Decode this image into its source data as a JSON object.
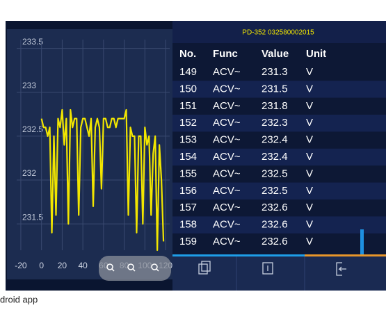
{
  "chart_data": {
    "type": "line",
    "x": [
      0,
      2,
      4,
      6,
      8,
      10,
      12,
      14,
      16,
      18,
      20,
      22,
      24,
      26,
      28,
      30,
      32,
      34,
      36,
      38,
      40,
      42,
      44,
      46,
      48,
      50,
      52,
      54,
      56,
      58,
      60,
      62,
      64,
      66,
      68,
      70,
      72,
      74,
      76,
      78,
      80,
      82,
      84,
      86,
      88,
      90,
      92,
      94,
      96,
      98,
      100,
      102,
      104,
      106,
      108,
      110,
      112,
      114,
      116,
      118
    ],
    "series": [
      {
        "color": "#f2e600",
        "values": [
          232.7,
          232.6,
          232.6,
          232.5,
          232.6,
          231.4,
          232.5,
          231.6,
          232.7,
          232.6,
          232.8,
          232.4,
          232.7,
          231.5,
          232.8,
          232.6,
          232.7,
          232.7,
          231.6,
          232.6,
          232.7,
          232.7,
          232.6,
          232.5,
          232.7,
          231.7,
          232.6,
          232.7,
          232.6,
          231.9,
          232.7,
          232.7,
          232.6,
          232.6,
          232.7,
          232.7,
          232.6,
          232.7,
          232.7,
          232.7,
          232.7,
          232.8,
          231.6,
          232.6,
          232.5,
          232.5,
          231.4,
          232.5,
          232.5,
          231.5,
          232.6,
          232.4,
          232.5,
          231.6,
          232.3,
          232.5,
          231.2,
          232.4,
          232.0,
          231.3
        ]
      }
    ],
    "xlim": [
      -24,
      124
    ],
    "ylim": [
      231.2,
      233.6
    ],
    "xticks": [
      -20,
      0,
      20,
      40,
      60,
      80,
      100,
      120
    ],
    "yticks": [
      231.5,
      232,
      232.5,
      233,
      233.5
    ],
    "grid": true
  },
  "device_id": "PD-352 032580002015",
  "table": {
    "header": [
      "No.",
      "Func",
      "Value",
      "Unit"
    ],
    "rows": [
      [
        "149",
        "ACV~",
        "231.3",
        "V"
      ],
      [
        "150",
        "ACV~",
        "231.5",
        "V"
      ],
      [
        "151",
        "ACV~",
        "231.8",
        "V"
      ],
      [
        "152",
        "ACV~",
        "232.3",
        "V"
      ],
      [
        "153",
        "ACV~",
        "232.4",
        "V"
      ],
      [
        "154",
        "ACV~",
        "232.4",
        "V"
      ],
      [
        "155",
        "ACV~",
        "232.5",
        "V"
      ],
      [
        "156",
        "ACV~",
        "232.5",
        "V"
      ],
      [
        "157",
        "ACV~",
        "232.6",
        "V"
      ],
      [
        "158",
        "ACV~",
        "232.6",
        "V"
      ],
      [
        "159",
        "ACV~",
        "232.6",
        "V"
      ]
    ]
  },
  "caption": "droid app"
}
